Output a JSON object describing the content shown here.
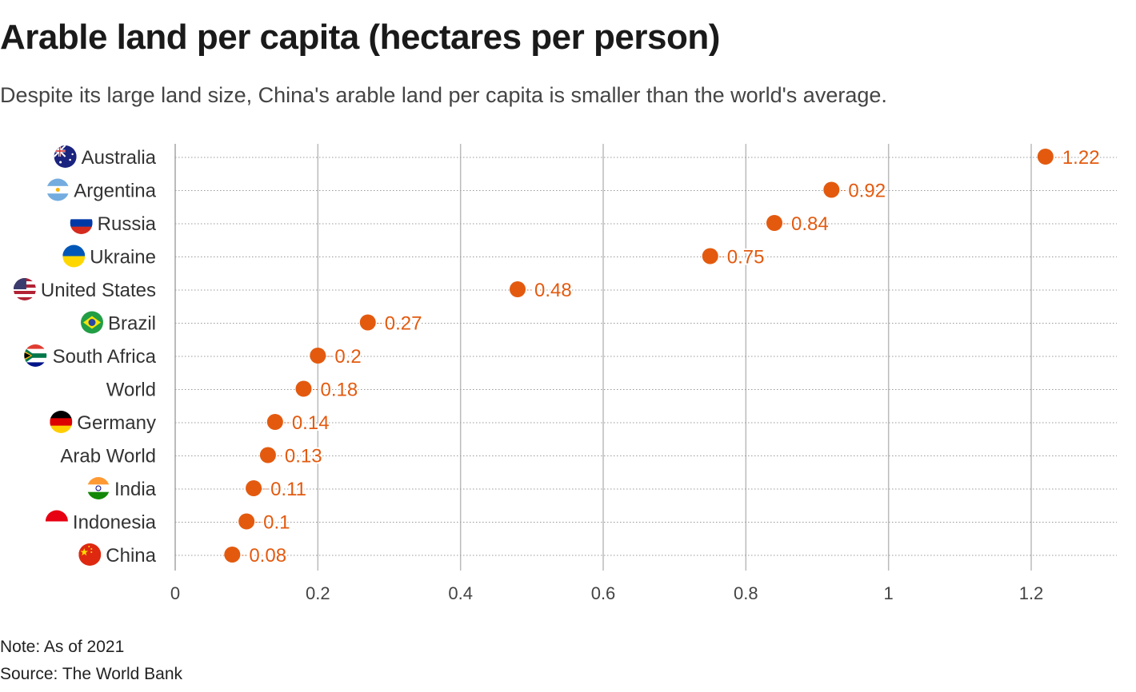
{
  "title": "Arable land per capita (hectares per person)",
  "subtitle": "Despite its large land size, China's arable land per capita is smaller than the world's average.",
  "note": "Note: As of 2021",
  "source": "Source: The World Bank",
  "colors": {
    "dot": "#e35a0f",
    "label": "#e35a0f",
    "grid": "#bbbbbb"
  },
  "chart_data": {
    "type": "scatter",
    "title": "Arable land per capita (hectares per person)",
    "xlabel": "",
    "ylabel": "",
    "xlim": [
      0,
      1.32
    ],
    "xticks": [
      0,
      0.2,
      0.4,
      0.6,
      0.8,
      1,
      1.2
    ],
    "xtick_labels": [
      "0",
      "0.2",
      "0.4",
      "0.6",
      "0.8",
      "1",
      "1.2"
    ],
    "grid": true,
    "categories": [
      "Australia",
      "Argentina",
      "Russia",
      "Ukraine",
      "United States",
      "Brazil",
      "South Africa",
      "World",
      "Germany",
      "Arab World",
      "India",
      "Indonesia",
      "China"
    ],
    "values": [
      1.22,
      0.92,
      0.84,
      0.75,
      0.48,
      0.27,
      0.2,
      0.18,
      0.14,
      0.13,
      0.11,
      0.1,
      0.08
    ],
    "value_labels": [
      "1.22",
      "0.92",
      "0.84",
      "0.75",
      "0.48",
      "0.27",
      "0.2",
      "0.18",
      "0.14",
      "0.13",
      "0.11",
      "0.1",
      "0.08"
    ],
    "flags": [
      "australia-flag-icon",
      "argentina-flag-icon",
      "russia-flag-icon",
      "ukraine-flag-icon",
      "united-states-flag-icon",
      "brazil-flag-icon",
      "south-africa-flag-icon",
      "",
      "germany-flag-icon",
      "",
      "india-flag-icon",
      "indonesia-flag-icon",
      "china-flag-icon"
    ]
  }
}
